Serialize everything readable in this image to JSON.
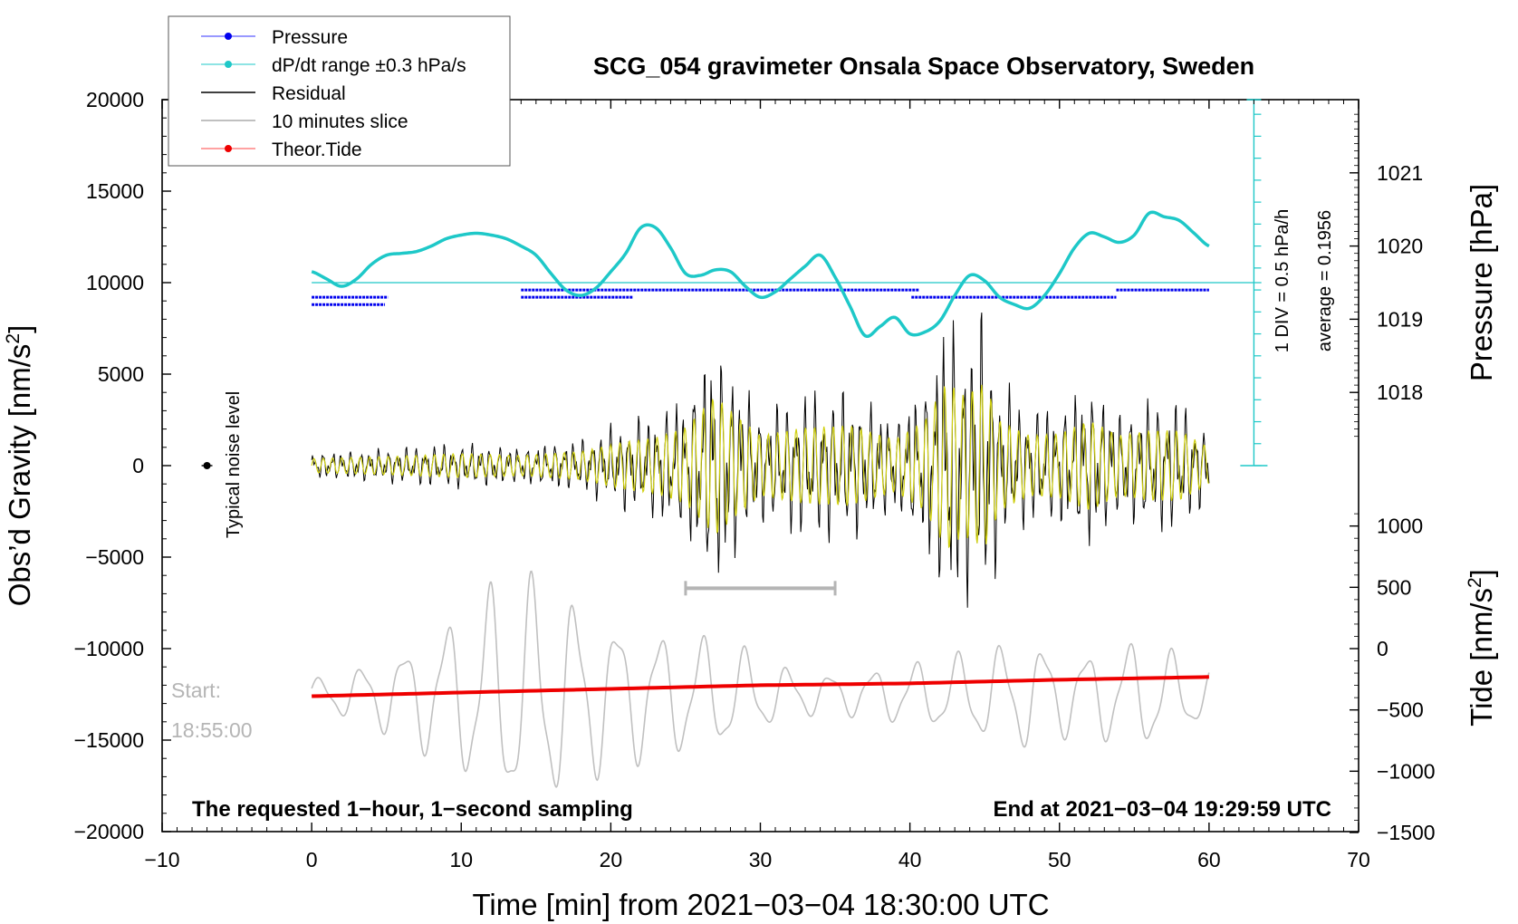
{
  "chart_data": {
    "type": "line",
    "title": "SCG_054 gravimeter Onsala Space Observatory, Sweden",
    "xlabel": "Time [min] from 2021−03−04 18:30:00 UTC",
    "ylabel_left": "Obs’d Gravity [nm/s",
    "ylabel_left_sup": "2",
    "ylabel_left_end": "]",
    "ylabel_right_pressure": "Pressure [hPa]",
    "ylabel_right_tide": "Tide [nm/s",
    "ylabel_right_tide_sup": "2",
    "ylabel_right_tide_end": "]",
    "xlim": [
      -10,
      70
    ],
    "ylim": [
      -20000,
      20000
    ],
    "x_ticks": [
      "−10",
      "0",
      "10",
      "20",
      "30",
      "40",
      "50",
      "60",
      "70"
    ],
    "x_tick_values": [
      -10,
      0,
      10,
      20,
      30,
      40,
      50,
      60,
      70
    ],
    "y_ticks": [
      "20000",
      "15000",
      "10000",
      "5000",
      "0",
      "−5000",
      "−10000",
      "−15000",
      "−20000"
    ],
    "y_tick_values": [
      20000,
      15000,
      10000,
      5000,
      0,
      -5000,
      -10000,
      -15000,
      -20000
    ],
    "pressure_axis": {
      "ticks": [
        "1021",
        "1020",
        "1019",
        "1018"
      ],
      "values": [
        1021,
        1020,
        1019,
        1018
      ],
      "gravity_equivalent_of_1021": 16000,
      "gravity_per_hpa": 4000
    },
    "tide_axis": {
      "ticks": [
        "1000",
        "500",
        "0",
        "−500",
        "−1000",
        "−1500"
      ],
      "values": [
        1000,
        500,
        0,
        -500,
        -1000,
        -1500
      ],
      "gravity_equivalent_of_0": -10000,
      "gravity_per_unit": 6.7
    },
    "legend": [
      {
        "label": "Pressure",
        "color": "#0000ee",
        "marker": "dot"
      },
      {
        "label": "dP/dt range ±0.3 hPa/s",
        "color": "#00c8c8",
        "marker": "dot"
      },
      {
        "label": "Residual",
        "color": "#000000",
        "marker": "none"
      },
      {
        "label": "10 minutes slice",
        "color": "#c0c0c0",
        "marker": "none"
      },
      {
        "label": "Theor.Tide",
        "color": "#ff0000",
        "marker": "dot"
      }
    ],
    "series": [
      {
        "name": "Pressure (dP/dt, cyan)",
        "color": "#1ec8c8",
        "x": [
          0,
          1,
          2,
          3,
          4,
          5,
          6,
          7,
          8,
          9,
          10,
          11,
          12,
          13,
          14,
          15,
          16,
          17,
          18,
          19,
          20,
          21,
          22,
          23,
          24,
          25,
          26,
          27,
          28,
          29,
          30,
          31,
          32,
          33,
          34,
          35,
          36,
          37,
          38,
          39,
          40,
          41,
          42,
          43,
          44,
          45,
          46,
          47,
          48,
          49,
          50,
          51,
          52,
          53,
          54,
          55,
          56,
          57,
          58,
          59,
          60
        ],
        "y": [
          10600,
          10200,
          9800,
          10200,
          11000,
          11500,
          11600,
          11700,
          12000,
          12400,
          12600,
          12700,
          12600,
          12400,
          12000,
          11500,
          10500,
          9600,
          9300,
          9700,
          10600,
          11600,
          13000,
          13000,
          11900,
          10500,
          10400,
          10700,
          10600,
          9800,
          9200,
          9500,
          10200,
          10900,
          11500,
          10300,
          8700,
          7100,
          7600,
          8100,
          7200,
          7300,
          7900,
          9300,
          10400,
          10100,
          9200,
          8800,
          8600,
          9300,
          10500,
          11900,
          12700,
          12500,
          12200,
          12600,
          13800,
          13600,
          13400,
          12700,
          12000
        ]
      },
      {
        "name": "Residual",
        "color": "#000000",
        "envelope_x": [
          0,
          5,
          10,
          14,
          18,
          21,
          23,
          25,
          27,
          28,
          30,
          33,
          36,
          39,
          41,
          42.5,
          43.5,
          45,
          46,
          48,
          50,
          52,
          54,
          56,
          58,
          60
        ],
        "envelope_y": [
          700,
          900,
          1200,
          1000,
          1400,
          2400,
          2800,
          3800,
          7000,
          5500,
          3000,
          3800,
          4000,
          2600,
          4500,
          8500,
          7000,
          8200,
          4500,
          3000,
          3200,
          4500,
          3000,
          3500,
          3500,
          1800
        ]
      },
      {
        "name": "10 minutes slice",
        "color": "#c0c0c0",
        "envelope_x": [
          0,
          3,
          6,
          8,
          10,
          12,
          13.5,
          15,
          17,
          20,
          23,
          26,
          28,
          30,
          33,
          36,
          39,
          42,
          45,
          48,
          51,
          54,
          56,
          58,
          60
        ],
        "envelope_y": [
          800,
          1500,
          2500,
          3500,
          4500,
          6000,
          6500,
          6500,
          5500,
          4200,
          3500,
          3200,
          3000,
          2000,
          1200,
          1200,
          1600,
          2000,
          2600,
          3000,
          2200,
          2800,
          3000,
          2200,
          1500
        ]
      },
      {
        "name": "Theor.Tide",
        "color": "#ee0000",
        "x": [
          0,
          10,
          20,
          30,
          40,
          50,
          60
        ],
        "y": [
          -12600,
          -12400,
          -12200,
          -12000,
          -11900,
          -11700,
          -11550
        ]
      }
    ],
    "pressure_dots": {
      "color": "#0000ee",
      "levels": [
        9600,
        9200,
        8800
      ],
      "segments": [
        {
          "level": 9200,
          "x0": 0,
          "x1": 5.1
        },
        {
          "level": 8800,
          "x0": 0,
          "x1": 4.9
        },
        {
          "level": 9600,
          "x0": 14,
          "x1": 40.6
        },
        {
          "level": 9200,
          "x0": 14,
          "x1": 21.5
        },
        {
          "level": 9600,
          "x0": 53.8,
          "x1": 60
        },
        {
          "level": 9200,
          "x0": 40.1,
          "x1": 53.8
        }
      ]
    },
    "reference_line": {
      "y": 10000,
      "color": "#1ec8c8"
    },
    "scale_bar_gray": {
      "x0": 25,
      "x1": 35,
      "y": -6700
    },
    "dpdt_scale": {
      "x": 63,
      "y_top": 20000,
      "y_bottom": 0,
      "div": 1200,
      "label1": "1 DIV = 0.5 hPa/h",
      "label2": "average = 0.1956"
    },
    "noise_level": {
      "x": -7,
      "y": 0,
      "label": "Typical noise level"
    },
    "annotations": {
      "start_label": "Start:",
      "start_time": "18:55:00",
      "bottom_left": "The requested 1−hour, 1−second sampling",
      "bottom_right": "End at 2021−03−04 19:29:59 UTC"
    }
  }
}
